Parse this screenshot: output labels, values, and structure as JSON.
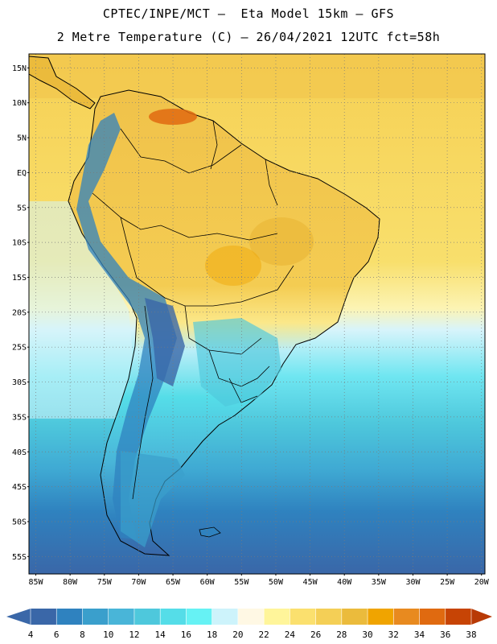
{
  "header": {
    "line1": "CPTEC/INPE/MCT –  Eta Model 15km – GFS",
    "line2": "2 Metre Temperature (C) – 26/04/2021 12UTC fct=58h"
  },
  "map": {
    "lat_labels": [
      "15N",
      "10N",
      "5N",
      "EQ",
      "5S",
      "10S",
      "15S",
      "20S",
      "25S",
      "30S",
      "35S",
      "40S",
      "45S",
      "50S",
      "55S"
    ],
    "lat_values": [
      15,
      10,
      5,
      0,
      -5,
      -10,
      -15,
      -20,
      -25,
      -30,
      -35,
      -40,
      -45,
      -50,
      -55
    ],
    "lon_labels": [
      "85W",
      "80W",
      "75W",
      "70W",
      "65W",
      "60W",
      "55W",
      "50W",
      "45W",
      "40W",
      "35W",
      "30W",
      "25W",
      "20W"
    ],
    "lon_values": [
      -85,
      -80,
      -75,
      -70,
      -65,
      -60,
      -55,
      -50,
      -45,
      -40,
      -35,
      -30,
      -25,
      -20
    ],
    "extent": {
      "lon_min": -86,
      "lon_max": -19.5,
      "lat_min": -57.5,
      "lat_max": 17
    }
  },
  "colorbar": {
    "labels": [
      "4",
      "6",
      "8",
      "10",
      "12",
      "14",
      "16",
      "18",
      "20",
      "22",
      "24",
      "26",
      "28",
      "30",
      "32",
      "34",
      "36",
      "38"
    ],
    "colors": [
      "#3a67a8",
      "#2f82bf",
      "#3a9fcc",
      "#49b5d8",
      "#4ec8dc",
      "#55dde8",
      "#66f2f4",
      "#cdf3fb",
      "#fff8e4",
      "#fff59a",
      "#fbe06e",
      "#f4cf56",
      "#ebbb3c",
      "#f0a400",
      "#e88a1f",
      "#e06a10",
      "#c74405",
      "#b83a06"
    ]
  }
}
